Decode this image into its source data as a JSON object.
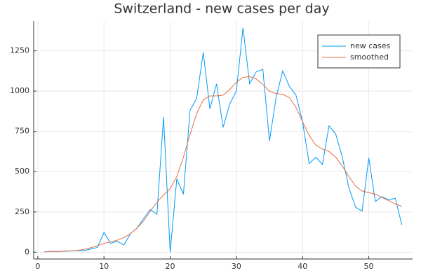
{
  "chart_data": {
    "type": "line",
    "title": "Switzerland - new cases per day",
    "x": [
      1,
      2,
      3,
      4,
      5,
      6,
      7,
      8,
      9,
      10,
      11,
      12,
      13,
      14,
      15,
      16,
      17,
      18,
      19,
      20,
      21,
      22,
      23,
      24,
      25,
      26,
      27,
      28,
      29,
      30,
      31,
      32,
      33,
      34,
      35,
      36,
      37,
      38,
      39,
      40,
      41,
      42,
      43,
      44,
      45,
      46,
      47,
      48,
      49,
      50,
      51,
      52,
      53,
      54,
      55
    ],
    "series": [
      {
        "name": "new cases",
        "color": "#009af9",
        "values": [
          2,
          6,
          4,
          6,
          8,
          10,
          10,
          20,
          30,
          122,
          55,
          68,
          45,
          115,
          150,
          210,
          265,
          235,
          840,
          0,
          455,
          360,
          880,
          955,
          1240,
          890,
          1045,
          775,
          920,
          1000,
          1393,
          1045,
          1120,
          1135,
          690,
          960,
          1125,
          1030,
          975,
          810,
          550,
          590,
          545,
          785,
          735,
          590,
          400,
          280,
          255,
          585,
          315,
          345,
          325,
          335,
          170
        ]
      },
      {
        "name": "smoothed",
        "color": "#e26f46",
        "values": [
          2,
          4,
          5,
          7,
          9,
          12,
          18,
          28,
          40,
          55,
          65,
          75,
          90,
          115,
          150,
          195,
          255,
          310,
          355,
          395,
          470,
          590,
          730,
          860,
          945,
          970,
          970,
          975,
          1010,
          1055,
          1085,
          1090,
          1075,
          1040,
          1000,
          985,
          980,
          960,
          900,
          810,
          725,
          665,
          640,
          625,
          590,
          535,
          470,
          410,
          380,
          370,
          360,
          340,
          320,
          300,
          285
        ]
      }
    ],
    "xlim": [
      -0.62,
      56.62
    ],
    "xticks": [
      0,
      10,
      20,
      30,
      40,
      50
    ],
    "ylim": [
      -42,
      1435
    ],
    "yticks": [
      0,
      250,
      500,
      750,
      1000,
      1250
    ],
    "grid": true,
    "legend": "top-right"
  }
}
